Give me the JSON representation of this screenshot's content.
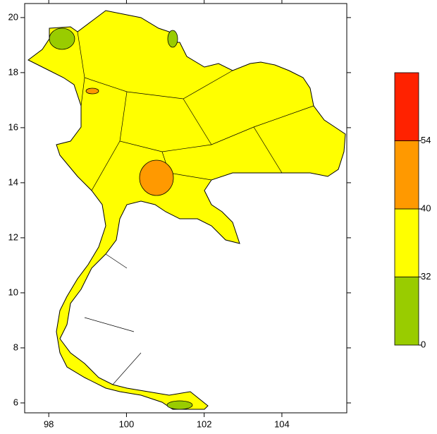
{
  "chart_data": {
    "type": "map",
    "xlim": [
      97.38,
      105.67
    ],
    "xticks": [
      98,
      100,
      102,
      104
    ],
    "ylim": [
      5.64,
      20.51
    ],
    "yticks": [
      6,
      8,
      10,
      12,
      14,
      16,
      18,
      20
    ],
    "legend": {
      "levels": [
        0,
        32,
        40,
        54
      ],
      "colors": [
        "#99cc00",
        "#ffff00",
        "#ff9900",
        "#ff2200"
      ]
    }
  }
}
